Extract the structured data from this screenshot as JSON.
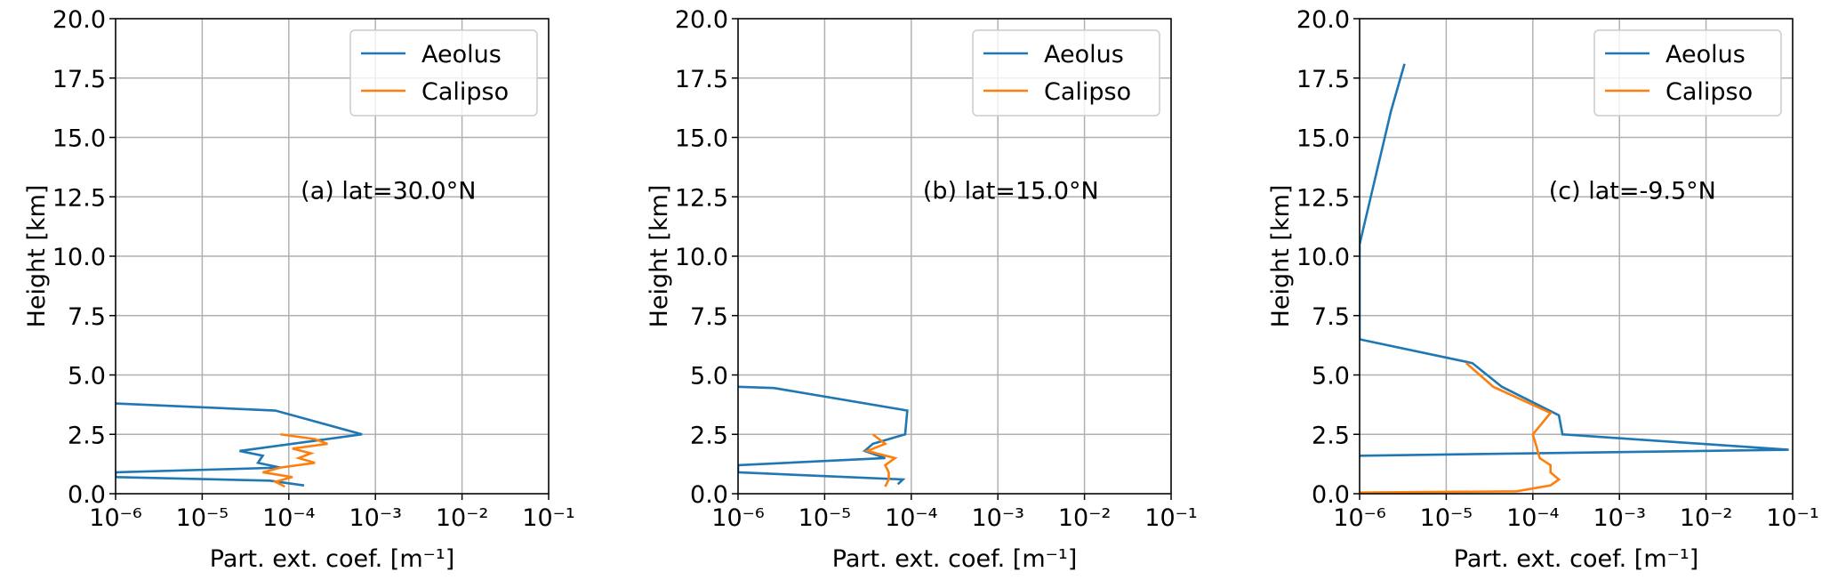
{
  "chart_data": [
    {
      "type": "line",
      "annotation": "(a) lat=30.0°N",
      "xlabel": "Part. ext. coef. [m⁻¹]",
      "ylabel": "Height [km]",
      "xscale": "log",
      "xlim": [
        1e-06,
        0.1
      ],
      "ylim": [
        0,
        20
      ],
      "grid": true,
      "legend": "upper right",
      "xticks": [
        {
          "value": 1e-06,
          "label": "10⁻⁶"
        },
        {
          "value": 1e-05,
          "label": "10⁻⁵"
        },
        {
          "value": 0.0001,
          "label": "10⁻⁴"
        },
        {
          "value": 0.001,
          "label": "10⁻³"
        },
        {
          "value": 0.01,
          "label": "10⁻²"
        },
        {
          "value": 0.1,
          "label": "10⁻¹"
        }
      ],
      "yticks": [
        {
          "value": 0,
          "label": "0.0"
        },
        {
          "value": 2.5,
          "label": "2.5"
        },
        {
          "value": 5,
          "label": "5.0"
        },
        {
          "value": 7.5,
          "label": "7.5"
        },
        {
          "value": 10,
          "label": "10.0"
        },
        {
          "value": 12.5,
          "label": "12.5"
        },
        {
          "value": 15,
          "label": "15.0"
        },
        {
          "value": 17.5,
          "label": "17.5"
        },
        {
          "value": 20,
          "label": "20.0"
        }
      ],
      "series": [
        {
          "name": "Aeolus",
          "color": "#1f77b4",
          "x": [
            1e-06,
            7e-05,
            0.0007,
            2.7e-05,
            5e-05,
            4.4e-05,
            8e-05,
            1e-06,
            1e-06,
            6e-05,
            0.00015
          ],
          "y": [
            3.8,
            3.5,
            2.5,
            1.8,
            1.6,
            1.3,
            1.1,
            0.9,
            0.7,
            0.55,
            0.35
          ]
        },
        {
          "name": "Calipso",
          "color": "#ff7f0e",
          "x": [
            8e-05,
            0.0002,
            0.00028,
            0.00011,
            0.00018,
            0.00013,
            0.0002,
            8e-05,
            5e-05,
            0.00011,
            7e-05,
            9e-05
          ],
          "y": [
            2.5,
            2.3,
            2.1,
            1.9,
            1.7,
            1.5,
            1.3,
            1.1,
            0.9,
            0.7,
            0.5,
            0.3
          ]
        }
      ]
    },
    {
      "type": "line",
      "annotation": "(b) lat=15.0°N",
      "xlabel": "Part. ext. coef. [m⁻¹]",
      "ylabel": "Height [km]",
      "xscale": "log",
      "xlim": [
        1e-06,
        0.1
      ],
      "ylim": [
        0,
        20
      ],
      "grid": true,
      "legend": "upper right",
      "xticks": [
        {
          "value": 1e-06,
          "label": "10⁻⁶"
        },
        {
          "value": 1e-05,
          "label": "10⁻⁵"
        },
        {
          "value": 0.0001,
          "label": "10⁻⁴"
        },
        {
          "value": 0.001,
          "label": "10⁻³"
        },
        {
          "value": 0.01,
          "label": "10⁻²"
        },
        {
          "value": 0.1,
          "label": "10⁻¹"
        }
      ],
      "yticks": [
        {
          "value": 0,
          "label": "0.0"
        },
        {
          "value": 2.5,
          "label": "2.5"
        },
        {
          "value": 5,
          "label": "5.0"
        },
        {
          "value": 7.5,
          "label": "7.5"
        },
        {
          "value": 10,
          "label": "10.0"
        },
        {
          "value": 12.5,
          "label": "12.5"
        },
        {
          "value": 15,
          "label": "15.0"
        },
        {
          "value": 17.5,
          "label": "17.5"
        },
        {
          "value": 20,
          "label": "20.0"
        }
      ],
      "series": [
        {
          "name": "Aeolus",
          "color": "#1f77b4",
          "x": [
            1e-06,
            2.6e-06,
            9e-05,
            8.5e-05,
            3.6e-05,
            2.9e-05,
            5e-05,
            1e-06,
            1e-06,
            8e-05,
            7e-05
          ],
          "y": [
            4.5,
            4.45,
            3.5,
            2.5,
            2.1,
            1.8,
            1.5,
            1.2,
            0.9,
            0.6,
            0.4
          ]
        },
        {
          "name": "Calipso",
          "color": "#ff7f0e",
          "x": [
            3.6e-05,
            5e-05,
            3.1e-05,
            6.5e-05,
            5e-05,
            5.5e-05,
            5.5e-05,
            5e-05
          ],
          "y": [
            2.5,
            2.1,
            1.8,
            1.5,
            1.2,
            0.9,
            0.6,
            0.3
          ]
        }
      ]
    },
    {
      "type": "line",
      "annotation": "(c) lat=-9.5°N",
      "xlabel": "Part. ext. coef. [m⁻¹]",
      "ylabel": "Height [km]",
      "xscale": "log",
      "xlim": [
        1e-06,
        0.1
      ],
      "ylim": [
        0,
        20
      ],
      "grid": true,
      "legend": "upper right",
      "xticks": [
        {
          "value": 1e-06,
          "label": "10⁻⁶"
        },
        {
          "value": 1e-05,
          "label": "10⁻⁵"
        },
        {
          "value": 0.0001,
          "label": "10⁻⁴"
        },
        {
          "value": 0.001,
          "label": "10⁻³"
        },
        {
          "value": 0.01,
          "label": "10⁻²"
        },
        {
          "value": 0.1,
          "label": "10⁻¹"
        }
      ],
      "yticks": [
        {
          "value": 0,
          "label": "0.0"
        },
        {
          "value": 2.5,
          "label": "2.5"
        },
        {
          "value": 5,
          "label": "5.0"
        },
        {
          "value": 7.5,
          "label": "7.5"
        },
        {
          "value": 10,
          "label": "10.0"
        },
        {
          "value": 12.5,
          "label": "12.5"
        },
        {
          "value": 15,
          "label": "15.0"
        },
        {
          "value": 17.5,
          "label": "17.5"
        },
        {
          "value": 20,
          "label": "20.0"
        }
      ],
      "series": [
        {
          "name": "Aeolus",
          "color": "#1f77b4",
          "x": [
            3.3e-06,
            2.3e-06,
            1e-06,
            1e-06,
            2e-05,
            4.4e-05,
            0.0002,
            0.00022,
            0.09,
            1e-06
          ],
          "y": [
            18.1,
            16.1,
            10.5,
            6.5,
            5.5,
            4.5,
            3.3,
            2.5,
            1.85,
            1.6
          ]
        },
        {
          "name": "Calipso",
          "color": "#ff7f0e",
          "x": [
            1.7e-05,
            3.5e-05,
            0.00016,
            0.0001,
            0.00011,
            0.00012,
            0.00016,
            0.00016,
            0.0002,
            0.00016,
            6.5e-05,
            1e-06
          ],
          "y": [
            5.5,
            4.5,
            3.4,
            2.5,
            2.0,
            1.5,
            1.2,
            0.9,
            0.6,
            0.35,
            0.1,
            0.05
          ]
        }
      ]
    }
  ]
}
